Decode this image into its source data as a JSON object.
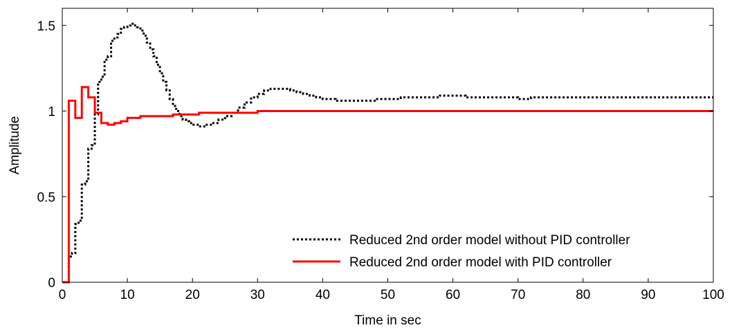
{
  "chart_data": {
    "type": "line",
    "xlabel": "Time in sec",
    "ylabel": "Amplitude",
    "xlim": [
      0,
      100
    ],
    "ylim": [
      0,
      1.6
    ],
    "xticks": [
      "0",
      "10",
      "20",
      "30",
      "40",
      "50",
      "60",
      "70",
      "80",
      "90",
      "100"
    ],
    "yticks": [
      "0",
      "0.5",
      "1",
      "1.5"
    ],
    "legend_position": "bottom-right",
    "grid": false,
    "series": [
      {
        "name": "Reduced 2nd order model without PID controller",
        "color": "#000000",
        "style": "dotted-stairs",
        "x": [
          0,
          1,
          1.5,
          2,
          2.5,
          3,
          3.5,
          4,
          4.5,
          5,
          5.5,
          6,
          6.5,
          7,
          7.5,
          8,
          8.5,
          9,
          9.5,
          10,
          10.5,
          11,
          11.5,
          12,
          12.5,
          13,
          13.5,
          14,
          14.5,
          15,
          15.5,
          16,
          16.5,
          17,
          17.5,
          18,
          18.5,
          19,
          19.5,
          20,
          21,
          22,
          23,
          24,
          25,
          26,
          27,
          28,
          29,
          30,
          31,
          32,
          33,
          34,
          35,
          36,
          37,
          38,
          39,
          40,
          42,
          44,
          46,
          48,
          50,
          52,
          54,
          56,
          58,
          60,
          62,
          64,
          66,
          68,
          70,
          72,
          74,
          76,
          78,
          80,
          85,
          90,
          95,
          100
        ],
        "y": [
          0,
          0.15,
          0.17,
          0.34,
          0.36,
          0.57,
          0.59,
          0.78,
          0.8,
          0.98,
          1.17,
          1.2,
          1.3,
          1.32,
          1.41,
          1.43,
          1.45,
          1.48,
          1.49,
          1.5,
          1.51,
          1.5,
          1.49,
          1.47,
          1.44,
          1.4,
          1.36,
          1.32,
          1.27,
          1.22,
          1.17,
          1.12,
          1.07,
          1.03,
          1.0,
          0.97,
          0.95,
          0.94,
          0.93,
          0.92,
          0.91,
          0.92,
          0.93,
          0.95,
          0.97,
          0.99,
          1.02,
          1.05,
          1.08,
          1.1,
          1.12,
          1.13,
          1.13,
          1.13,
          1.12,
          1.11,
          1.1,
          1.09,
          1.08,
          1.07,
          1.06,
          1.06,
          1.06,
          1.07,
          1.07,
          1.08,
          1.08,
          1.08,
          1.09,
          1.09,
          1.08,
          1.08,
          1.08,
          1.08,
          1.07,
          1.08,
          1.08,
          1.08,
          1.08,
          1.08,
          1.08,
          1.08,
          1.08,
          1.08
        ]
      },
      {
        "name": "Reduced 2nd order model with PID controller",
        "color": "#ff0000",
        "style": "solid-stairs",
        "x": [
          0,
          1,
          2,
          3,
          4,
          5,
          6,
          7,
          8,
          9,
          10,
          11,
          12,
          13,
          14,
          15,
          16,
          17,
          18,
          19,
          20,
          21,
          22,
          23,
          24,
          25,
          26,
          27,
          28,
          29,
          30,
          40,
          50,
          60,
          70,
          80,
          90,
          100
        ],
        "y": [
          0,
          1.06,
          0.96,
          1.14,
          1.08,
          0.99,
          0.93,
          0.92,
          0.93,
          0.94,
          0.96,
          0.96,
          0.97,
          0.97,
          0.97,
          0.97,
          0.97,
          0.98,
          0.98,
          0.98,
          0.98,
          0.99,
          0.99,
          0.99,
          0.99,
          0.99,
          0.99,
          0.99,
          0.99,
          0.99,
          1.0,
          1.0,
          1.0,
          1.0,
          1.0,
          1.0,
          1.0,
          1.0
        ]
      }
    ]
  }
}
